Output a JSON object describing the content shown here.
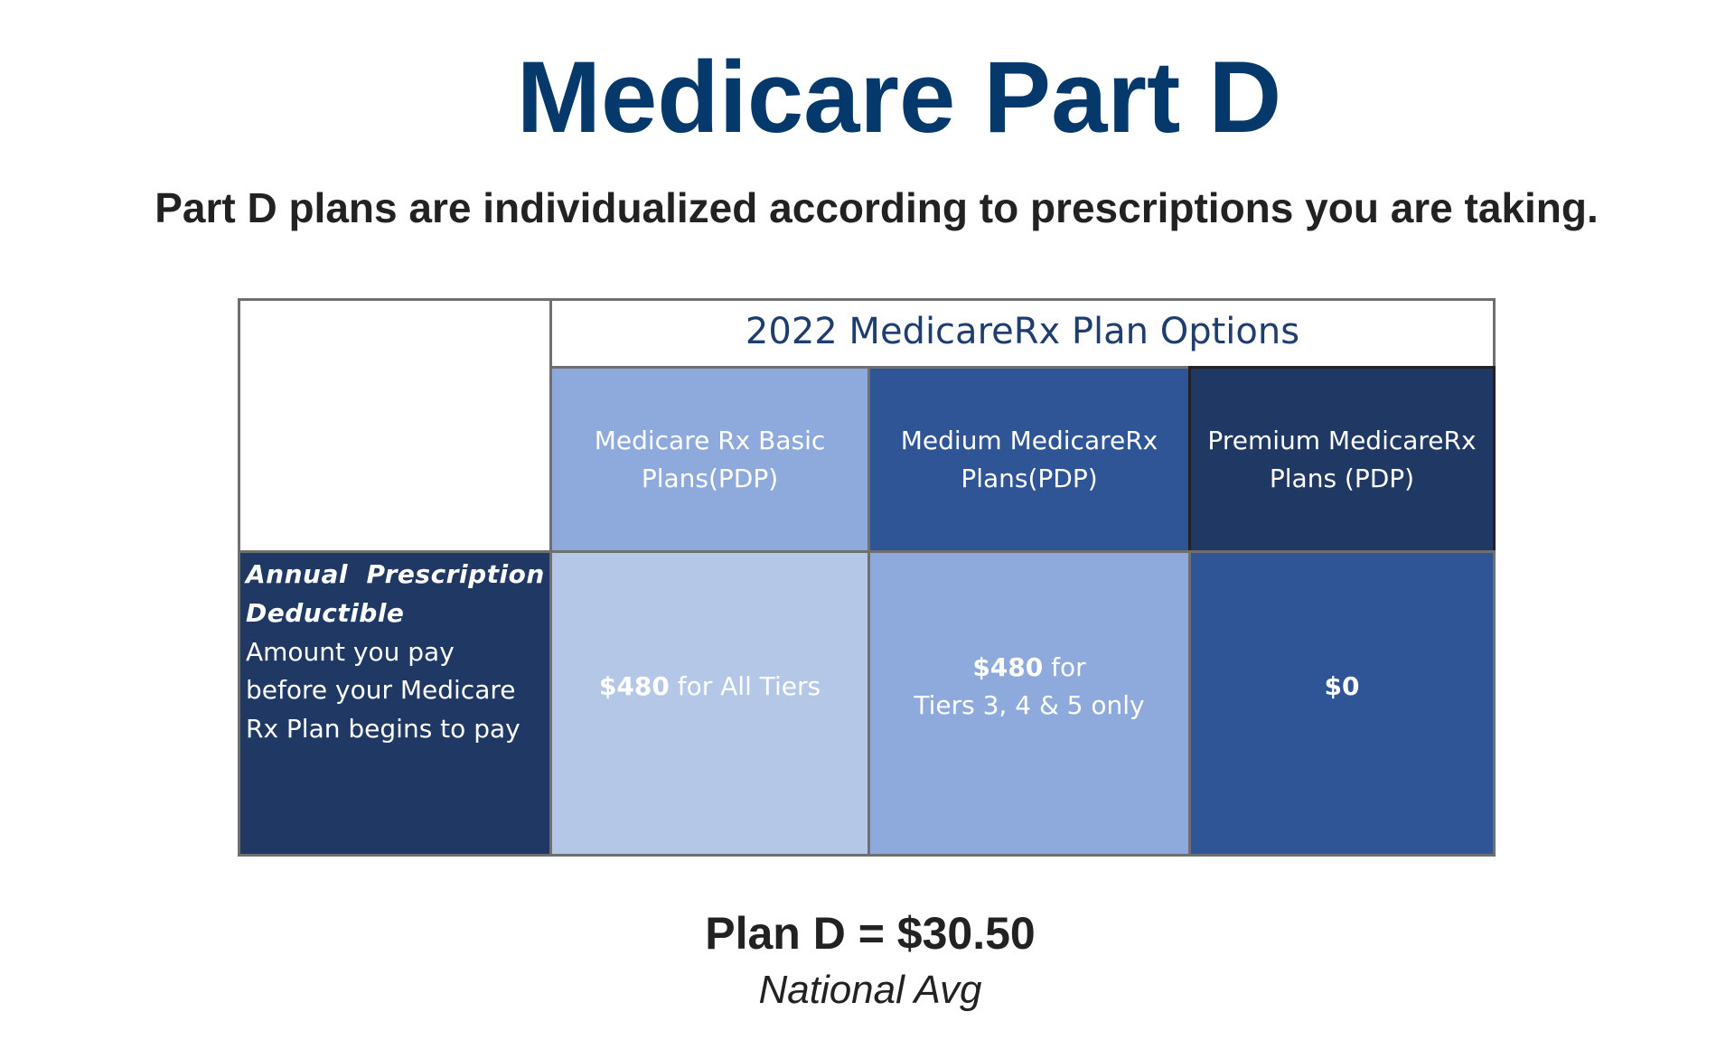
{
  "title": "Medicare Part D",
  "subtitle": "Part D plans are individualized according to prescriptions you are taking.",
  "table": {
    "banner": "2022 MedicareRx Plan Options",
    "columns": [
      {
        "line1": "Medicare Rx Basic",
        "line2": "Plans(PDP)"
      },
      {
        "line1": "Medium MedicareRx",
        "line2": "Plans(PDP)"
      },
      {
        "line1": "Premium MedicareRx",
        "line2": "Plans (PDP)"
      }
    ],
    "row": {
      "label_bold_1": "Annual  Prescription",
      "label_bold_2": "Deductible",
      "label_text_1": "Amount you pay",
      "label_text_2": "before your Medicare",
      "label_text_3": "Rx Plan begins to pay",
      "values": [
        {
          "amount": "$480",
          "rest": " for All Tiers"
        },
        {
          "amount": "$480",
          "rest": " for",
          "line2": "Tiers 3, 4 & 5 only"
        },
        {
          "amount": "$0"
        }
      ]
    }
  },
  "footer": {
    "main": "Plan D = $30.50",
    "sub": "National Avg"
  },
  "colors": {
    "title": "#05386b",
    "light_blue": "#b4c7e7",
    "medium_blue": "#8eaadc",
    "blue": "#2f5597",
    "dark_navy": "#203864"
  }
}
